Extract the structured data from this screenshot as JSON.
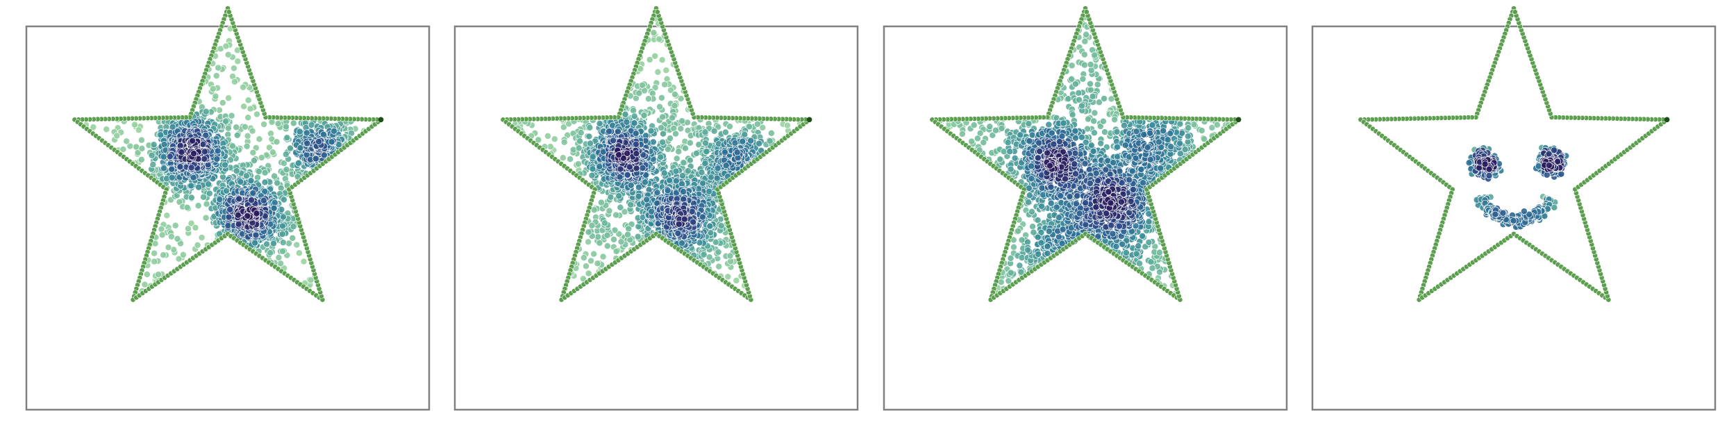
{
  "chart_data": [
    {
      "type": "scatter",
      "title": "",
      "xlabel": "",
      "ylabel": "",
      "axes_visible": false,
      "grid": false,
      "legend": "none",
      "boundary": {
        "shape": "star",
        "points": 5,
        "outer_radius": 1.0,
        "inner_radius": 0.4,
        "marker_color": "#5a9e4e"
      },
      "point_count": 2400,
      "colormap": [
        "#a6dba0",
        "#6cb79a",
        "#3d8f99",
        "#2e6f96",
        "#2c4a87",
        "#281a5c"
      ],
      "clusters": [
        {
          "x": -0.22,
          "y": 0.11,
          "sigma": 0.11,
          "weight": 0.42
        },
        {
          "x": 0.13,
          "y": -0.28,
          "sigma": 0.11,
          "weight": 0.4
        },
        {
          "x": 0.58,
          "y": 0.12,
          "sigma": 0.09,
          "weight": 0.18
        }
      ],
      "diffuse_fraction": 0.18
    },
    {
      "type": "scatter",
      "title": "",
      "xlabel": "",
      "ylabel": "",
      "axes_visible": false,
      "grid": false,
      "legend": "none",
      "boundary": {
        "shape": "star",
        "points": 5,
        "outer_radius": 1.0,
        "inner_radius": 0.4,
        "marker_color": "#5a9e4e"
      },
      "point_count": 2400,
      "colormap": [
        "#a6dba0",
        "#6cb79a",
        "#3d8f99",
        "#2e6f96",
        "#2c4a87",
        "#281a5c"
      ],
      "clusters": [
        {
          "x": -0.2,
          "y": 0.09,
          "sigma": 0.12,
          "weight": 0.44
        },
        {
          "x": 0.14,
          "y": -0.29,
          "sigma": 0.12,
          "weight": 0.4
        },
        {
          "x": 0.5,
          "y": 0.05,
          "sigma": 0.1,
          "weight": 0.16
        }
      ],
      "diffuse_fraction": 0.28
    },
    {
      "type": "scatter",
      "title": "",
      "xlabel": "",
      "ylabel": "",
      "axes_visible": false,
      "grid": false,
      "legend": "none",
      "boundary": {
        "shape": "star",
        "points": 5,
        "outer_radius": 1.0,
        "inner_radius": 0.4,
        "marker_color": "#5a9e4e"
      },
      "point_count": 2400,
      "colormap": [
        "#a6dba0",
        "#6cb79a",
        "#3d8f99",
        "#2e6f96",
        "#2c4a87",
        "#281a5c"
      ],
      "clusters": [
        {
          "x": -0.2,
          "y": 0.05,
          "sigma": 0.11,
          "weight": 0.3
        },
        {
          "x": 0.15,
          "y": -0.2,
          "sigma": 0.16,
          "weight": 0.46
        },
        {
          "x": 0.4,
          "y": 0.12,
          "sigma": 0.12,
          "weight": 0.14
        },
        {
          "x": -0.1,
          "y": -0.55,
          "sigma": 0.15,
          "weight": 0.1
        }
      ],
      "diffuse_fraction": 0.32
    },
    {
      "type": "scatter",
      "title": "",
      "xlabel": "",
      "ylabel": "",
      "axes_visible": false,
      "grid": false,
      "legend": "none",
      "boundary": {
        "shape": "star",
        "points": 5,
        "outer_radius": 1.0,
        "inner_radius": 0.4,
        "marker_color": "#5a9e4e"
      },
      "point_count": 600,
      "colormap": [
        "#a6dba0",
        "#6cb79a",
        "#3d8f99",
        "#2e6f96",
        "#2c4a87",
        "#281a5c"
      ],
      "face": {
        "left_eye": {
          "x": -0.18,
          "y": 0.04,
          "r": 0.09
        },
        "right_eye": {
          "x": 0.23,
          "y": 0.04,
          "r": 0.09
        },
        "smile": {
          "x": 0.02,
          "y": -0.21,
          "r": 0.23,
          "start_deg": 200,
          "end_deg": 335
        }
      }
    }
  ]
}
